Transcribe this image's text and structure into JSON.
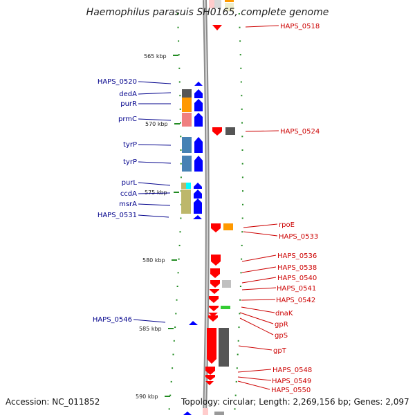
{
  "title": "Haemophilus parasuis SH0165, complete genome",
  "accession": "Accession: NC_011852",
  "topology": "Topology: circular; Length: 2,269,156 bp; Genes: 2,097",
  "colors": {
    "left_strand": "#0000ff",
    "right_strand": "#ff0000",
    "left_labels": "#00008b",
    "right_labels": "#cc0000",
    "ticks": "#228b22",
    "backbone": "#8c8c8c"
  },
  "scale": {
    "unit": "kbp",
    "labels": [
      "565 kbp",
      "570 kbp",
      "575 kbp",
      "580 kbp",
      "585 kbp",
      "590 kbp"
    ]
  },
  "left_genes": [
    "HAPS_0520",
    "dedA",
    "purR",
    "prmC",
    "tyrP",
    "tyrP",
    "purL",
    "ccdA",
    "msrA",
    "HAPS_0531",
    "HAPS_0546"
  ],
  "right_genes": [
    "HAPS_0518",
    "HAPS_0524",
    "rpoE",
    "HAPS_0533",
    "HAPS_0536",
    "HAPS_0538",
    "HAPS_0540",
    "HAPS_0541",
    "HAPS_0542",
    "dnaK",
    "gpR",
    "gpS",
    "gpT",
    "HAPS_0548",
    "HAPS_0549",
    "HAPS_0550"
  ]
}
